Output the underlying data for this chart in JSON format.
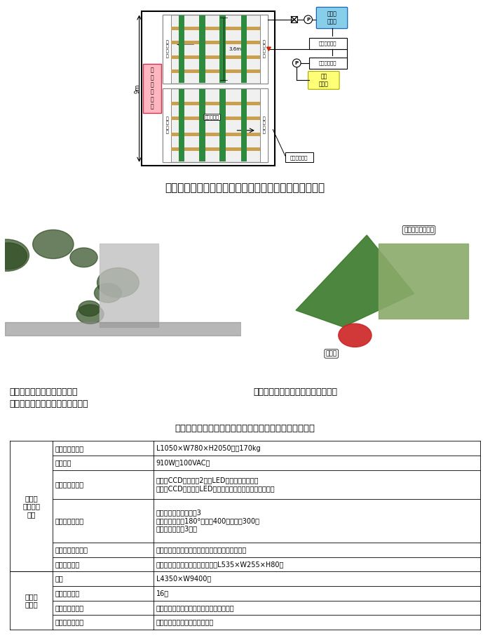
{
  "bg_color": "#ffffff",
  "fig_width": 6.99,
  "fig_height": 9.09,
  "fig1_title": "図１　定置型収穫ロボットと循環式移動栽培装置の配置",
  "fig2_caption_line1": "図２　定置型収穫ロボットと",
  "fig2_caption_line2": "　　　循環式移動栽培装置の連動",
  "fig3_caption": "図３　エンドエフェクタによる採果",
  "table_title": "表１　定置型収穫ロボットと循環式移動栽培装置の仕様",
  "items": [
    "寸法および質量",
    "所要電力",
    "マシンビジョン",
    "マニピュレータ",
    "エンドエフェクタ",
    "トレイ収容部",
    "寸法",
    "栽培ベッド数",
    "縦移送ユニット",
    "横移送ユニット"
  ],
  "details": [
    "L1050×W780×H2050㎜、170kg",
    "910W（100VAC）",
    "カラーCCDカメラ：2台、LEDバー照明（固定）\nカラーCCDカメラ、LEDリング照明（エンドエフェクタ）",
    "円筒座標型、自由度：3\n可動範囲：回転180°、昇降400㎜、前後300㎜\nフィンガ傾斜：3段階",
    "切断刃付き開閉フィンガ、把持確認用光電センサ",
    "収容台：左右両側、対応ケース：L535×W255×H80㎜",
    "L4350×W9400㎜",
    "16台",
    "ラチェット式送り棒、レバークランク駆動",
    "チェーンコンベア、可変速機能"
  ],
  "row_heights_rel": [
    1,
    1,
    2,
    3,
    1,
    1,
    1,
    1,
    1,
    1
  ],
  "group0_label": "定置型\nロボット\n本体",
  "group0_rows": [
    0,
    5
  ],
  "group1_label": "移動栽\n培装置",
  "group1_rows": [
    6,
    9
  ],
  "green_color": "#2d8a3e",
  "tan_color": "#c8a050",
  "robot_color": "#ffb6c1",
  "robot_border": "#cc3355",
  "tank1_color": "#87ceeb",
  "tank1_border": "#0055aa",
  "tank2_color": "#ffff77",
  "tank2_border": "#aaaa00",
  "photo_left_color": "#7a8a6a",
  "photo_right_color": "#5a7a6a"
}
